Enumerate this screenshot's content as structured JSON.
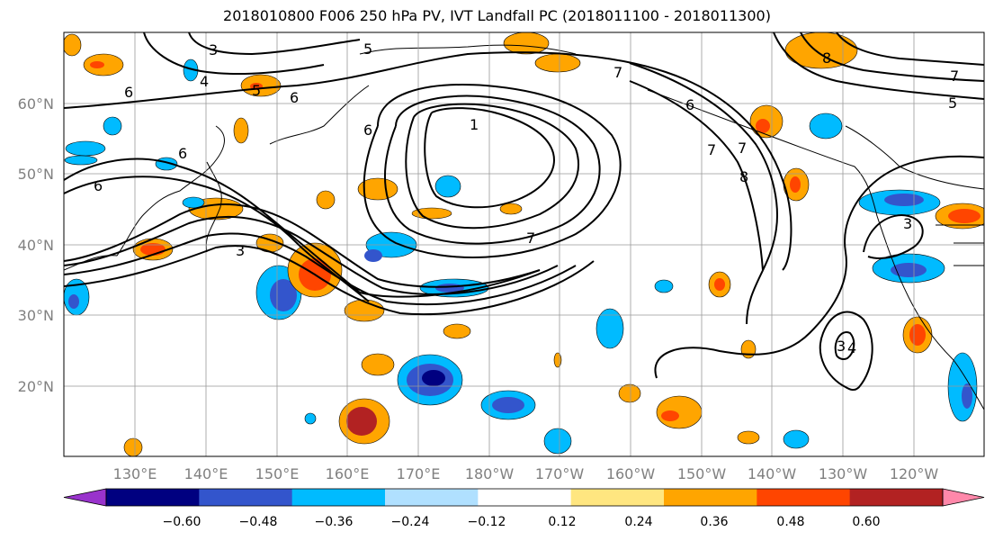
{
  "title": "2018010800 F006 250 hPa PV, IVT Landfall PC (2018011100 - 2018011300)",
  "lat_ticks": [
    "60°N",
    "50°N",
    "40°N",
    "30°N",
    "20°N"
  ],
  "lon_ticks": [
    "130°E",
    "140°E",
    "150°E",
    "160°E",
    "170°E",
    "180°W",
    "170°W",
    "160°W",
    "150°W",
    "140°W",
    "130°W",
    "120°W"
  ],
  "colorbar": {
    "colors": [
      "#9933cc",
      "#000080",
      "#3355cc",
      "#00bbff",
      "#b0e0ff",
      "#ffffff",
      "#ffe680",
      "#ffa500",
      "#ff4500",
      "#b22222",
      "#ff88aa"
    ],
    "labels": [
      "−0.60",
      "−0.48",
      "−0.36",
      "−0.24",
      "−0.12",
      "0.12",
      "0.24",
      "0.36",
      "0.48",
      "0.60"
    ]
  },
  "contour_labels": [
    "3",
    "4",
    "5",
    "6",
    "6",
    "6",
    "1",
    "7",
    "7",
    "8",
    "6",
    "7",
    "8",
    "5",
    "3",
    "7",
    "6",
    "3",
    "3",
    "4",
    "5",
    "6",
    "7"
  ]
}
